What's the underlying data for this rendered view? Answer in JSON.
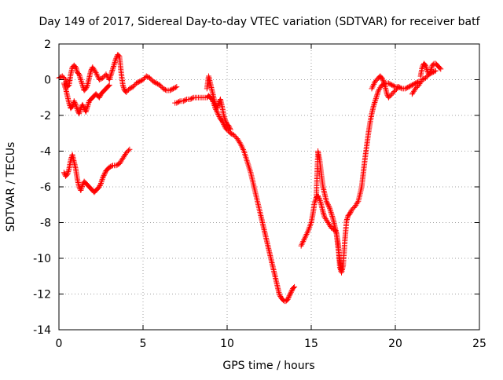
{
  "chart_data": {
    "type": "scatter",
    "title": "Day 149 of 2017, Sidereal Day-to-day VTEC variation (SDTVAR) for receiver batf",
    "xlabel": "GPS time / hours",
    "ylabel": "SDTVAR / TECUs",
    "xlim": [
      0,
      25
    ],
    "ylim": [
      -14,
      2
    ],
    "xticks": [
      "0",
      "5",
      "10",
      "15",
      "20",
      "25"
    ],
    "yticks": [
      "2",
      "0",
      "-2",
      "-4",
      "-6",
      "-8",
      "-10",
      "-12",
      "-14"
    ],
    "grid": true,
    "marker": "plus",
    "color": "#ff0000",
    "series": [
      {
        "x": [
          0.0,
          0.2,
          0.4,
          0.5,
          0.6,
          0.7,
          0.8,
          0.9,
          1.0,
          1.1,
          1.2,
          1.3,
          1.4,
          1.5,
          1.6,
          1.7,
          1.8,
          1.9,
          2.0,
          2.2,
          2.4,
          2.6,
          2.8,
          3.0,
          3.1,
          3.2,
          3.3,
          3.4,
          3.5,
          3.6,
          3.7,
          3.8,
          3.9,
          4.0,
          4.2,
          4.4,
          4.6,
          4.8,
          5.0,
          5.2,
          5.4,
          5.6,
          5.8,
          6.0,
          6.2,
          6.4,
          6.6,
          6.8,
          7.0
        ],
        "y": [
          0.1,
          0.2,
          0.0,
          -0.4,
          -0.3,
          0.3,
          0.7,
          0.8,
          0.7,
          0.4,
          0.3,
          0.0,
          -0.3,
          -0.6,
          -0.5,
          -0.3,
          0.1,
          0.5,
          0.7,
          0.4,
          0.0,
          0.1,
          0.3,
          0.0,
          0.3,
          0.6,
          0.9,
          1.2,
          1.4,
          1.3,
          0.4,
          -0.3,
          -0.6,
          -0.7,
          -0.5,
          -0.4,
          -0.2,
          -0.1,
          0.0,
          0.2,
          0.1,
          -0.1,
          -0.2,
          -0.3,
          -0.5,
          -0.6,
          -0.6,
          -0.5,
          -0.4
        ]
      },
      {
        "x": [
          0.3,
          0.4,
          0.5,
          0.6,
          0.7,
          0.8,
          0.9,
          1.0,
          1.1,
          1.2,
          1.3,
          1.4,
          1.5,
          1.6,
          1.7,
          1.8,
          1.9,
          2.0,
          2.1,
          2.2,
          2.3,
          2.4,
          2.5,
          2.6,
          2.7,
          2.8,
          2.9,
          3.0
        ],
        "y": [
          -0.2,
          -0.5,
          -0.9,
          -1.3,
          -1.6,
          -1.5,
          -1.2,
          -1.4,
          -1.7,
          -1.9,
          -1.6,
          -1.4,
          -1.6,
          -1.8,
          -1.5,
          -1.2,
          -1.1,
          -1.0,
          -0.9,
          -0.8,
          -0.9,
          -1.0,
          -0.8,
          -0.7,
          -0.6,
          -0.5,
          -0.4,
          -0.3
        ]
      },
      {
        "x": [
          0.3,
          0.4,
          0.5,
          0.6,
          0.7,
          0.8,
          0.9,
          1.0,
          1.1,
          1.2,
          1.3,
          1.4,
          1.5,
          1.6,
          1.7,
          1.8,
          1.9,
          2.0,
          2.1,
          2.2,
          2.3,
          2.4,
          2.5,
          2.6,
          2.7,
          2.8,
          2.9,
          3.0,
          3.2,
          3.4,
          3.6,
          3.8,
          4.0,
          4.2
        ],
        "y": [
          -5.2,
          -5.4,
          -5.3,
          -5.0,
          -4.5,
          -4.2,
          -4.6,
          -5.0,
          -5.6,
          -6.0,
          -6.2,
          -5.9,
          -5.7,
          -5.8,
          -5.9,
          -6.0,
          -6.1,
          -6.2,
          -6.3,
          -6.2,
          -6.1,
          -6.0,
          -5.8,
          -5.5,
          -5.3,
          -5.1,
          -5.0,
          -4.9,
          -4.8,
          -4.8,
          -4.7,
          -4.4,
          -4.1,
          -3.9
        ]
      },
      {
        "x": [
          6.9,
          7.0,
          7.2,
          7.4,
          7.6,
          7.8,
          8.0,
          8.2,
          8.4,
          8.6,
          8.8,
          8.9,
          9.0,
          9.1,
          9.2,
          9.3,
          9.4,
          9.5,
          9.6,
          9.7,
          9.8,
          9.9,
          10.0,
          10.2,
          10.4,
          10.6,
          10.8,
          11.0,
          11.2,
          11.4,
          11.6,
          11.8,
          12.0,
          12.1,
          12.2,
          12.3,
          12.4,
          12.5,
          12.6,
          12.7,
          12.8,
          12.9,
          13.0,
          13.1,
          13.2,
          13.3,
          13.4,
          13.5,
          13.6,
          13.7,
          13.8,
          13.9,
          14.0
        ],
        "y": [
          -1.3,
          -1.3,
          -1.2,
          -1.2,
          -1.1,
          -1.1,
          -1.0,
          -1.0,
          -1.0,
          -1.0,
          -1.0,
          -0.9,
          -1.0,
          -1.1,
          -1.3,
          -1.6,
          -1.8,
          -2.0,
          -2.2,
          -2.3,
          -2.5,
          -2.7,
          -2.8,
          -3.0,
          -3.1,
          -3.3,
          -3.6,
          -4.0,
          -4.6,
          -5.2,
          -6.0,
          -6.8,
          -7.6,
          -8.0,
          -8.4,
          -8.8,
          -9.2,
          -9.6,
          -10.0,
          -10.4,
          -10.8,
          -11.2,
          -11.6,
          -12.0,
          -12.2,
          -12.3,
          -12.4,
          -12.4,
          -12.3,
          -12.1,
          -11.9,
          -11.7,
          -11.6
        ]
      },
      {
        "x": [
          8.8,
          8.9,
          9.0,
          9.1,
          9.2,
          9.3,
          9.4,
          9.5,
          9.6,
          9.7,
          9.8,
          9.9,
          10.0,
          10.1,
          10.2
        ],
        "y": [
          -0.5,
          0.2,
          -0.2,
          -0.6,
          -1.0,
          -1.4,
          -1.6,
          -1.3,
          -1.1,
          -1.5,
          -2.0,
          -2.3,
          -2.5,
          -2.6,
          -2.8
        ]
      },
      {
        "x": [
          14.4,
          14.6,
          14.8,
          15.0,
          15.1,
          15.2,
          15.3,
          15.4,
          15.5,
          15.6,
          15.7,
          15.8,
          16.0,
          16.2,
          16.4,
          16.5,
          16.6,
          16.7,
          16.8,
          16.9,
          17.0,
          17.1,
          17.2,
          17.3,
          17.4,
          17.6,
          17.8,
          18.0,
          18.1,
          18.2,
          18.3,
          18.4,
          18.5,
          18.6,
          18.7,
          18.8,
          18.9,
          19.0,
          19.2,
          19.4,
          19.6,
          19.8,
          20.0,
          20.2,
          20.4,
          20.6,
          20.8,
          21.0,
          21.2,
          21.4
        ],
        "y": [
          -9.3,
          -8.9,
          -8.5,
          -8.0,
          -7.5,
          -6.9,
          -6.6,
          -6.5,
          -6.7,
          -7.0,
          -7.4,
          -7.7,
          -8.0,
          -8.3,
          -8.4,
          -8.6,
          -9.2,
          -10.5,
          -10.8,
          -10.4,
          -9.0,
          -7.9,
          -7.6,
          -7.5,
          -7.3,
          -7.1,
          -6.8,
          -6.0,
          -5.2,
          -4.4,
          -3.7,
          -3.0,
          -2.4,
          -1.9,
          -1.5,
          -1.2,
          -0.9,
          -0.6,
          -0.3,
          -0.2,
          -0.2,
          -0.3,
          -0.4,
          -0.4,
          -0.5,
          -0.5,
          -0.4,
          -0.3,
          -0.2,
          -0.1
        ]
      },
      {
        "x": [
          15.3,
          15.4,
          15.5,
          15.6,
          15.7,
          15.8,
          15.9,
          16.0,
          16.1,
          16.2,
          16.3,
          16.4,
          16.5,
          16.6,
          16.7,
          16.8
        ],
        "y": [
          -6.6,
          -4.0,
          -4.5,
          -5.3,
          -6.0,
          -6.4,
          -6.8,
          -7.0,
          -7.2,
          -7.5,
          -7.8,
          -8.2,
          -8.6,
          -9.4,
          -10.1,
          -10.7
        ]
      },
      {
        "x": [
          18.6,
          18.8,
          19.0,
          19.1,
          19.2,
          19.3,
          19.4,
          19.5,
          19.6,
          19.8,
          20.0,
          20.2
        ],
        "y": [
          -0.5,
          -0.1,
          0.1,
          0.2,
          0.1,
          -0.1,
          -0.4,
          -0.8,
          -1.0,
          -0.8,
          -0.6,
          -0.4
        ]
      },
      {
        "x": [
          21.5,
          21.6,
          21.7,
          21.8,
          21.9,
          22.0,
          22.1,
          22.2,
          22.3,
          22.4,
          22.5,
          22.6,
          22.7
        ],
        "y": [
          0.2,
          0.7,
          0.9,
          0.8,
          0.5,
          0.3,
          0.5,
          0.8,
          0.9,
          0.9,
          0.8,
          0.7,
          0.6
        ]
      },
      {
        "x": [
          21.0,
          21.2,
          21.4,
          21.6,
          21.8,
          22.0,
          22.2,
          22.4
        ],
        "y": [
          -0.8,
          -0.5,
          -0.3,
          0.0,
          0.1,
          0.3,
          0.4,
          0.5
        ]
      }
    ]
  }
}
